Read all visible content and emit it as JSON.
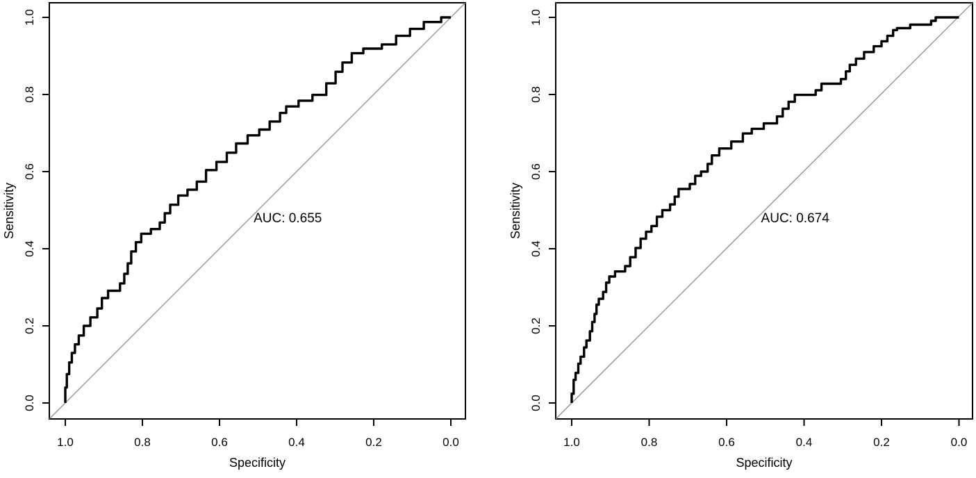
{
  "figure": {
    "background_color": "#ffffff",
    "curve_color": "#000000",
    "diagonal_color": "#8c8c8c",
    "axis_color": "#000000"
  },
  "chart_data": [
    {
      "type": "line",
      "subtype": "roc_curve",
      "title": "",
      "xlabel": "Specificity",
      "ylabel": "Sensitivity",
      "x_axis": {
        "range": [
          1.0,
          0.0
        ],
        "reversed": true,
        "ticks": [
          1.0,
          0.8,
          0.6,
          0.4,
          0.2,
          0.0
        ],
        "tick_labels": [
          "1.0",
          "0.8",
          "0.6",
          "0.4",
          "0.2",
          "0.0"
        ]
      },
      "y_axis": {
        "range": [
          0.0,
          1.0
        ],
        "ticks": [
          0.0,
          0.2,
          0.4,
          0.6,
          0.8,
          1.0
        ],
        "tick_labels": [
          "0.0",
          "0.2",
          "0.4",
          "0.6",
          "0.8",
          "1.0"
        ]
      },
      "auc": 0.655,
      "annotation": "AUC: 0.655",
      "annotation_pos": {
        "specificity": 0.423,
        "sensitivity": 0.479
      },
      "diagonal_reference": true,
      "grid": false,
      "legend": null,
      "series": [
        {
          "name": "ROC curve (AUC 0.655)",
          "points_format": [
            "specificity",
            "sensitivity"
          ],
          "points": [
            [
              1,
              0
            ],
            [
              1,
              0.04
            ],
            [
              0.996,
              0.055
            ],
            [
              0.993,
              0.075
            ],
            [
              0.99,
              0.09
            ],
            [
              0.987,
              0.105
            ],
            [
              0.983,
              0.115
            ],
            [
              0.98,
              0.13
            ],
            [
              0.975,
              0.14
            ],
            [
              0.971,
              0.152
            ],
            [
              0.965,
              0.163
            ],
            [
              0.958,
              0.175
            ],
            [
              0.952,
              0.188
            ],
            [
              0.948,
              0.2
            ],
            [
              0.935,
              0.21
            ],
            [
              0.925,
              0.222
            ],
            [
              0.917,
              0.232
            ],
            [
              0.912,
              0.245
            ],
            [
              0.905,
              0.258
            ],
            [
              0.899,
              0.272
            ],
            [
              0.889,
              0.285
            ],
            [
              0.874,
              0.291
            ],
            [
              0.858,
              0.298
            ],
            [
              0.852,
              0.31
            ],
            [
              0.847,
              0.323
            ],
            [
              0.843,
              0.335
            ],
            [
              0.838,
              0.348
            ],
            [
              0.833,
              0.362
            ],
            [
              0.829,
              0.378
            ],
            [
              0.824,
              0.393
            ],
            [
              0.817,
              0.403
            ],
            [
              0.809,
              0.417
            ],
            [
              0.803,
              0.432
            ],
            [
              0.79,
              0.439
            ],
            [
              0.778,
              0.444
            ],
            [
              0.766,
              0.451
            ],
            [
              0.755,
              0.459
            ],
            [
              0.748,
              0.468
            ],
            [
              0.742,
              0.48
            ],
            [
              0.736,
              0.492
            ],
            [
              0.728,
              0.505
            ],
            [
              0.719,
              0.514
            ],
            [
              0.707,
              0.529
            ],
            [
              0.695,
              0.538
            ],
            [
              0.683,
              0.547
            ],
            [
              0.671,
              0.553
            ],
            [
              0.659,
              0.562
            ],
            [
              0.647,
              0.574
            ],
            [
              0.635,
              0.589
            ],
            [
              0.622,
              0.604
            ],
            [
              0.608,
              0.613
            ],
            [
              0.593,
              0.625
            ],
            [
              0.581,
              0.637
            ],
            [
              0.569,
              0.649
            ],
            [
              0.557,
              0.664
            ],
            [
              0.545,
              0.673
            ],
            [
              0.527,
              0.685
            ],
            [
              0.509,
              0.694
            ],
            [
              0.497,
              0.7
            ],
            [
              0.482,
              0.709
            ],
            [
              0.47,
              0.715
            ],
            [
              0.455,
              0.73
            ],
            [
              0.443,
              0.742
            ],
            [
              0.434,
              0.752
            ],
            [
              0.427,
              0.762
            ],
            [
              0.419,
              0.769
            ],
            [
              0.395,
              0.775
            ],
            [
              0.377,
              0.784
            ],
            [
              0.359,
              0.793
            ],
            [
              0.341,
              0.799
            ],
            [
              0.323,
              0.811
            ],
            [
              0.311,
              0.829
            ],
            [
              0.299,
              0.841
            ],
            [
              0.29,
              0.859
            ],
            [
              0.281,
              0.871
            ],
            [
              0.269,
              0.883
            ],
            [
              0.257,
              0.895
            ],
            [
              0.245,
              0.907
            ],
            [
              0.227,
              0.913
            ],
            [
              0.203,
              0.919
            ],
            [
              0.179,
              0.925
            ],
            [
              0.161,
              0.93
            ],
            [
              0.142,
              0.943
            ],
            [
              0.124,
              0.952
            ],
            [
              0.106,
              0.961
            ],
            [
              0.088,
              0.97
            ],
            [
              0.07,
              0.979
            ],
            [
              0.052,
              0.988
            ],
            [
              0.025,
              0.997
            ],
            [
              0.011,
              1
            ],
            [
              0,
              1
            ]
          ]
        }
      ]
    },
    {
      "type": "line",
      "subtype": "roc_curve",
      "title": "",
      "xlabel": "Specificity",
      "ylabel": "Sensitivity",
      "x_axis": {
        "range": [
          1.0,
          0.0
        ],
        "reversed": true,
        "ticks": [
          1.0,
          0.8,
          0.6,
          0.4,
          0.2,
          0.0
        ],
        "tick_labels": [
          "1.0",
          "0.8",
          "0.6",
          "0.4",
          "0.2",
          "0.0"
        ]
      },
      "y_axis": {
        "range": [
          0.0,
          1.0
        ],
        "ticks": [
          0.0,
          0.2,
          0.4,
          0.6,
          0.8,
          1.0
        ],
        "tick_labels": [
          "0.0",
          "0.2",
          "0.4",
          "0.6",
          "0.8",
          "1.0"
        ]
      },
      "auc": 0.674,
      "annotation": "AUC: 0.674",
      "annotation_pos": {
        "specificity": 0.423,
        "sensitivity": 0.479
      },
      "diagonal_reference": true,
      "grid": false,
      "legend": null,
      "series": [
        {
          "name": "ROC curve (AUC 0.674)",
          "points_format": [
            "specificity",
            "sensitivity"
          ],
          "points": [
            [
              1,
              0
            ],
            [
              1,
              0.024
            ],
            [
              0.995,
              0.048
            ],
            [
              0.992,
              0.06
            ],
            [
              0.99,
              0.068
            ],
            [
              0.986,
              0.078
            ],
            [
              0.983,
              0.09
            ],
            [
              0.98,
              0.102
            ],
            [
              0.977,
              0.111
            ],
            [
              0.971,
              0.12
            ],
            [
              0.968,
              0.132
            ],
            [
              0.965,
              0.144
            ],
            [
              0.962,
              0.156
            ],
            [
              0.956,
              0.162
            ],
            [
              0.953,
              0.174
            ],
            [
              0.95,
              0.186
            ],
            [
              0.947,
              0.198
            ],
            [
              0.944,
              0.21
            ],
            [
              0.941,
              0.222
            ],
            [
              0.938,
              0.231
            ],
            [
              0.936,
              0.243
            ],
            [
              0.933,
              0.255
            ],
            [
              0.93,
              0.264
            ],
            [
              0.925,
              0.27
            ],
            [
              0.919,
              0.276
            ],
            [
              0.914,
              0.288
            ],
            [
              0.911,
              0.3
            ],
            [
              0.908,
              0.312
            ],
            [
              0.903,
              0.32
            ],
            [
              0.896,
              0.328
            ],
            [
              0.888,
              0.336
            ],
            [
              0.876,
              0.341
            ],
            [
              0.862,
              0.348
            ],
            [
              0.858,
              0.355
            ],
            [
              0.849,
              0.366
            ],
            [
              0.842,
              0.378
            ],
            [
              0.835,
              0.39
            ],
            [
              0.828,
              0.402
            ],
            [
              0.822,
              0.414
            ],
            [
              0.817,
              0.426
            ],
            [
              0.808,
              0.435
            ],
            [
              0.801,
              0.444
            ],
            [
              0.794,
              0.452
            ],
            [
              0.787,
              0.459
            ],
            [
              0.78,
              0.47
            ],
            [
              0.773,
              0.483
            ],
            [
              0.766,
              0.492
            ],
            [
              0.757,
              0.5
            ],
            [
              0.746,
              0.505
            ],
            [
              0.74,
              0.515
            ],
            [
              0.734,
              0.523
            ],
            [
              0.728,
              0.535
            ],
            [
              0.724,
              0.547
            ],
            [
              0.719,
              0.555
            ],
            [
              0.695,
              0.558
            ],
            [
              0.688,
              0.568
            ],
            [
              0.681,
              0.577
            ],
            [
              0.675,
              0.589
            ],
            [
              0.666,
              0.596
            ],
            [
              0.655,
              0.6
            ],
            [
              0.649,
              0.61
            ],
            [
              0.644,
              0.62
            ],
            [
              0.638,
              0.63
            ],
            [
              0.63,
              0.642
            ],
            [
              0.619,
              0.654
            ],
            [
              0.6,
              0.66
            ],
            [
              0.588,
              0.67
            ],
            [
              0.575,
              0.678
            ],
            [
              0.558,
              0.69
            ],
            [
              0.548,
              0.699
            ],
            [
              0.535,
              0.705
            ],
            [
              0.515,
              0.711
            ],
            [
              0.504,
              0.719
            ],
            [
              0.497,
              0.725
            ],
            [
              0.47,
              0.729
            ],
            [
              0.462,
              0.743
            ],
            [
              0.455,
              0.755
            ],
            [
              0.448,
              0.763
            ],
            [
              0.44,
              0.77
            ],
            [
              0.433,
              0.781
            ],
            [
              0.424,
              0.792
            ],
            [
              0.412,
              0.799
            ],
            [
              0.37,
              0.801
            ],
            [
              0.363,
              0.811
            ],
            [
              0.355,
              0.821
            ],
            [
              0.349,
              0.828
            ],
            [
              0.305,
              0.831
            ],
            [
              0.298,
              0.84
            ],
            [
              0.292,
              0.849
            ],
            [
              0.288,
              0.86
            ],
            [
              0.282,
              0.868
            ],
            [
              0.275,
              0.877
            ],
            [
              0.266,
              0.884
            ],
            [
              0.256,
              0.893
            ],
            [
              0.245,
              0.902
            ],
            [
              0.233,
              0.91
            ],
            [
              0.22,
              0.917
            ],
            [
              0.209,
              0.925
            ],
            [
              0.2,
              0.934
            ],
            [
              0.193,
              0.938
            ],
            [
              0.185,
              0.944
            ],
            [
              0.179,
              0.952
            ],
            [
              0.17,
              0.963
            ],
            [
              0.163,
              0.967
            ],
            [
              0.16,
              0.97
            ],
            [
              0.13,
              0.972
            ],
            [
              0.126,
              0.981
            ],
            [
              0.078,
              0.981
            ],
            [
              0.072,
              0.988
            ],
            [
              0.067,
              0.991
            ],
            [
              0.06,
              1
            ],
            [
              0,
              1
            ]
          ]
        }
      ]
    }
  ]
}
